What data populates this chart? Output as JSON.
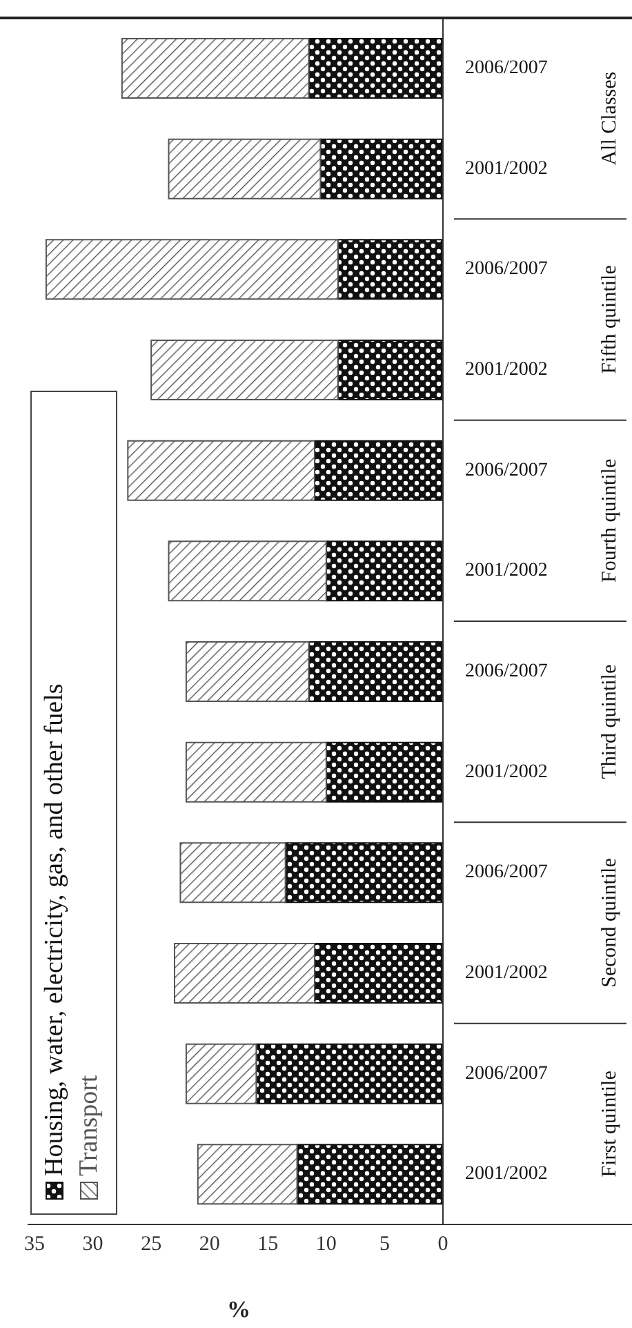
{
  "chart_data": {
    "type": "bar",
    "stacked": true,
    "orientation": "horizontal",
    "xlabel": "%",
    "categories": [
      "2006/2007",
      "2001/2002",
      "2006/2007",
      "2001/2002",
      "2006/2007",
      "2001/2002",
      "2006/2007",
      "2001/2002",
      "2006/2007",
      "2001/2002",
      "2006/2007",
      "2001/2002"
    ],
    "annotations": [
      "All Classes",
      "Fifth quintile",
      "Fourth quintile",
      "Third quintile",
      "Second quintile",
      "First quintile"
    ],
    "series": [
      {
        "name": "Housing, water, electricity, gas, and other fuels",
        "color": "#111111",
        "values": [
          11.5,
          10.5,
          9,
          9,
          11,
          10,
          11.5,
          10,
          13.5,
          11,
          16,
          12.5
        ]
      },
      {
        "name": "Transport",
        "color": "#555555",
        "values": [
          16,
          13,
          25,
          16,
          16,
          13.5,
          10.5,
          12,
          9,
          12,
          6,
          8.5
        ]
      }
    ],
    "xlim": [
      35,
      0
    ],
    "xticks": [
      35,
      30,
      25,
      20,
      15,
      10,
      5,
      0
    ],
    "grid": false,
    "legend": "bottom left"
  }
}
